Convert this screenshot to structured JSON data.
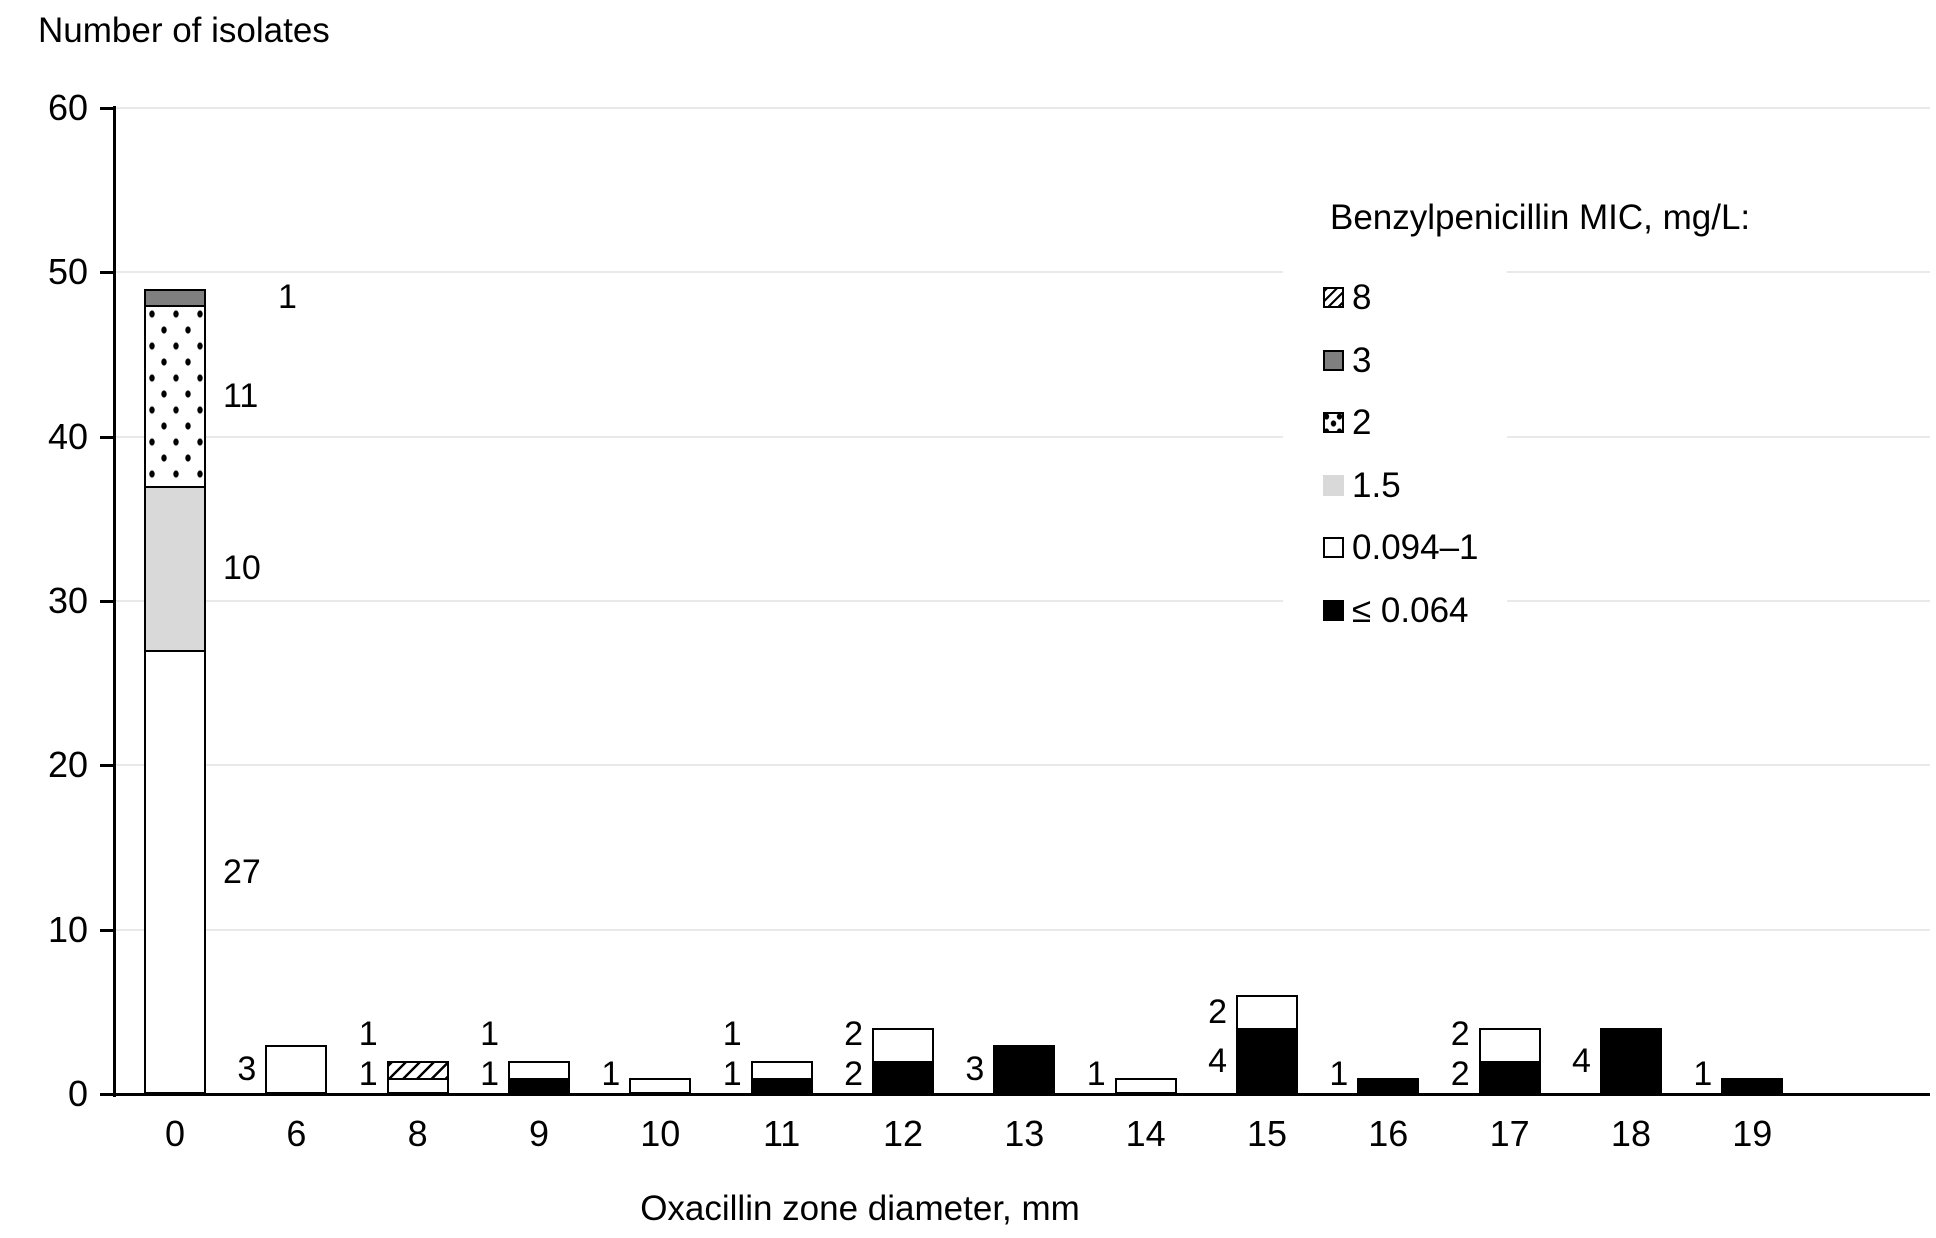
{
  "title": "Number of isolates",
  "x_axis_title": "Oxacillin zone diameter, mm",
  "y_ticks": [
    "0",
    "10",
    "20",
    "30",
    "40",
    "50",
    "60"
  ],
  "legend": {
    "title": "Benzylpenicillin MIC, mg/L:",
    "items": [
      {
        "label": "8",
        "pattern": "hatch"
      },
      {
        "label": "3",
        "pattern": "gray3"
      },
      {
        "label": "2",
        "pattern": "dots"
      },
      {
        "label": "1.5",
        "pattern": "gray15"
      },
      {
        "label": "0.094–1",
        "pattern": "white"
      },
      {
        "label": "≤ 0.064",
        "pattern": "black"
      }
    ]
  },
  "colors": {
    "black": "#000000",
    "white": "#ffffff",
    "dark_gray": "#7f7f7f",
    "light_gray": "#d9d9d9",
    "gridline": "#e9e9e9"
  },
  "chart_data": {
    "type": "bar",
    "stacked": true,
    "title": "Number of isolates",
    "xlabel": "Oxacillin zone diameter, mm",
    "ylabel": "Number of isolates",
    "ylim": [
      0,
      60
    ],
    "ytick_step": 10,
    "grid": true,
    "legend_position": "upper right",
    "categories": [
      "0",
      "6",
      "8",
      "9",
      "10",
      "11",
      "12",
      "13",
      "14",
      "15",
      "16",
      "17",
      "18",
      "19"
    ],
    "series": [
      {
        "name": "≤ 0.064",
        "pattern": "black",
        "values": [
          0,
          0,
          0,
          1,
          0,
          1,
          2,
          3,
          0,
          4,
          1,
          2,
          4,
          1
        ]
      },
      {
        "name": "0.094–1",
        "pattern": "white",
        "values": [
          27,
          3,
          1,
          1,
          1,
          1,
          2,
          0,
          1,
          2,
          0,
          2,
          0,
          0
        ]
      },
      {
        "name": "1.5",
        "pattern": "gray15",
        "values": [
          10,
          0,
          0,
          0,
          0,
          0,
          0,
          0,
          0,
          0,
          0,
          0,
          0,
          0
        ]
      },
      {
        "name": "2",
        "pattern": "dots",
        "values": [
          11,
          0,
          0,
          0,
          0,
          0,
          0,
          0,
          0,
          0,
          0,
          0,
          0,
          0
        ]
      },
      {
        "name": "3",
        "pattern": "gray3",
        "values": [
          1,
          0,
          0,
          0,
          0,
          0,
          0,
          0,
          0,
          0,
          0,
          0,
          0,
          0
        ]
      },
      {
        "name": "8",
        "pattern": "hatch",
        "values": [
          0,
          0,
          1,
          0,
          0,
          0,
          0,
          0,
          0,
          0,
          0,
          0,
          0,
          0
        ]
      }
    ],
    "data_labels": true,
    "label_side_right_categories": [
      "0"
    ],
    "label_dx_overrides": [
      {
        "category": "0",
        "series": "3",
        "dx": 55
      }
    ]
  }
}
